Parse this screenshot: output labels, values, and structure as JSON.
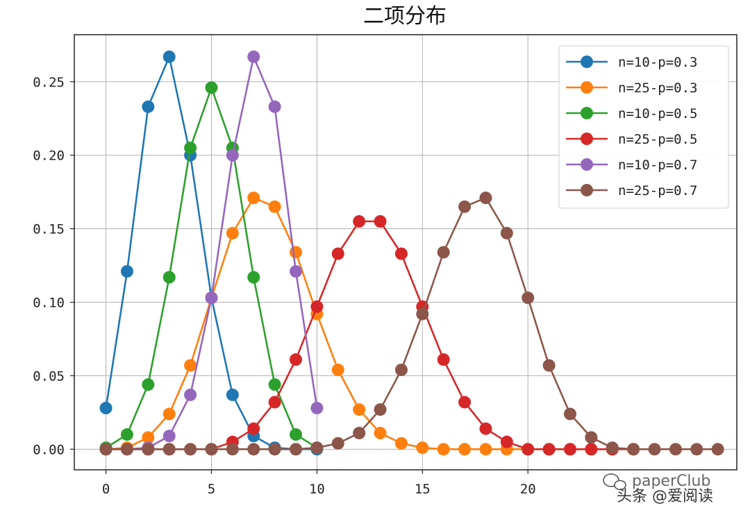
{
  "chart_data": {
    "type": "line",
    "title": "二项分布",
    "xlabel": "",
    "ylabel": "",
    "xlim": [
      -1.5,
      29.9
    ],
    "ylim": [
      -0.014,
      0.282
    ],
    "xticks": [
      0,
      5,
      10,
      15,
      20
    ],
    "xtick_labels": [
      "0",
      "5",
      "10",
      "15",
      "20"
    ],
    "yticks": [
      0.0,
      0.05,
      0.1,
      0.15,
      0.2,
      0.25
    ],
    "ytick_labels": [
      "0.00",
      "0.05",
      "0.10",
      "0.15",
      "0.20",
      "0.25"
    ],
    "grid": true,
    "legend_position": "top-right",
    "series": [
      {
        "name": "n=10-p=0.3",
        "color": "#1f77b4",
        "x": [
          0,
          1,
          2,
          3,
          4,
          5,
          6,
          7,
          8,
          9,
          10
        ],
        "values": [
          0.028,
          0.121,
          0.233,
          0.267,
          0.2,
          0.103,
          0.037,
          0.009,
          0.001,
          0.0,
          0.0
        ]
      },
      {
        "name": "n=25-p=0.3",
        "color": "#ff7f0e",
        "x": [
          0,
          1,
          2,
          3,
          4,
          5,
          6,
          7,
          8,
          9,
          10,
          11,
          12,
          13,
          14,
          15,
          16,
          17,
          18,
          19,
          20,
          21,
          22,
          23,
          24,
          25
        ],
        "values": [
          0.0,
          0.001,
          0.008,
          0.024,
          0.057,
          0.103,
          0.147,
          0.171,
          0.165,
          0.134,
          0.092,
          0.054,
          0.027,
          0.011,
          0.004,
          0.001,
          0.0,
          0.0,
          0.0,
          0.0,
          0.0,
          0.0,
          0.0,
          0.0,
          0.0,
          0.0
        ]
      },
      {
        "name": "n=10-p=0.5",
        "color": "#2ca02c",
        "x": [
          0,
          1,
          2,
          3,
          4,
          5,
          6,
          7,
          8,
          9,
          10
        ],
        "values": [
          0.001,
          0.01,
          0.044,
          0.117,
          0.205,
          0.246,
          0.205,
          0.117,
          0.044,
          0.01,
          0.001
        ]
      },
      {
        "name": "n=25-p=0.5",
        "color": "#d62728",
        "x": [
          0,
          1,
          2,
          3,
          4,
          5,
          6,
          7,
          8,
          9,
          10,
          11,
          12,
          13,
          14,
          15,
          16,
          17,
          18,
          19,
          20,
          21,
          22,
          23,
          24,
          25
        ],
        "values": [
          0.0,
          0.0,
          0.0,
          0.0,
          0.0,
          0.0,
          0.005,
          0.014,
          0.032,
          0.061,
          0.097,
          0.133,
          0.155,
          0.155,
          0.133,
          0.097,
          0.061,
          0.032,
          0.014,
          0.005,
          0.0,
          0.0,
          0.0,
          0.0,
          0.0,
          0.0
        ]
      },
      {
        "name": "n=10-p=0.7",
        "color": "#9467bd",
        "x": [
          0,
          1,
          2,
          3,
          4,
          5,
          6,
          7,
          8,
          9,
          10
        ],
        "values": [
          0.0,
          0.0,
          0.001,
          0.009,
          0.037,
          0.103,
          0.2,
          0.267,
          0.233,
          0.121,
          0.028
        ]
      },
      {
        "name": "n=25-p=0.7",
        "color": "#8c564b",
        "x": [
          0,
          1,
          2,
          3,
          4,
          5,
          6,
          7,
          8,
          9,
          10,
          11,
          12,
          13,
          14,
          15,
          16,
          17,
          18,
          19,
          20,
          21,
          22,
          23,
          24,
          25,
          26,
          27,
          28,
          29
        ],
        "values": [
          0.0,
          0.0,
          0.0,
          0.0,
          0.0,
          0.0,
          0.0,
          0.0,
          0.0,
          0.0,
          0.001,
          0.004,
          0.011,
          0.027,
          0.054,
          0.092,
          0.134,
          0.165,
          0.171,
          0.147,
          0.103,
          0.057,
          0.024,
          0.008,
          0.001,
          0.0,
          0.0,
          0.0,
          0.0,
          0.0
        ]
      }
    ]
  },
  "watermark": {
    "line1": "paperClub",
    "line2": "头条 @爱阅读"
  }
}
